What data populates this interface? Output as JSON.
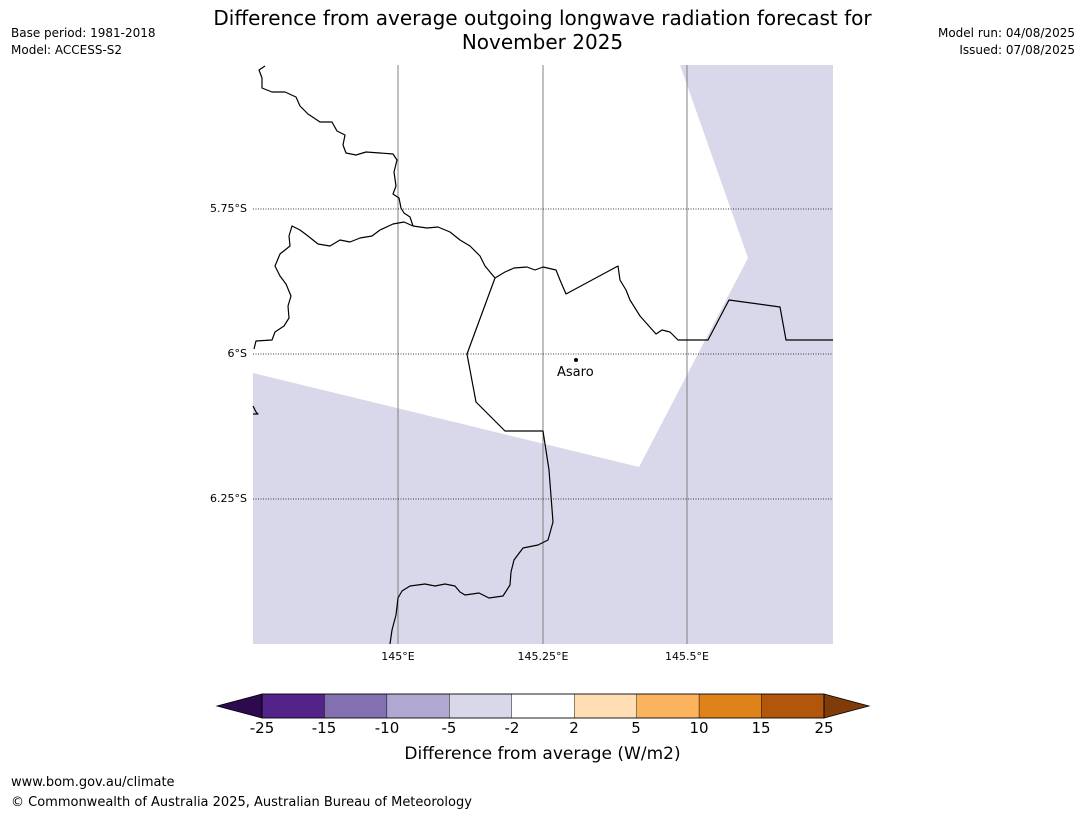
{
  "header": {
    "title_line1": "Difference from average outgoing longwave radiation forecast for",
    "title_line2": "November 2025",
    "base_period": "Base period: 1981-2018",
    "model": "Model: ACCESS-S2",
    "model_run": "Model run: 04/08/2025",
    "issued": "Issued: 07/08/2025"
  },
  "map": {
    "latitude_labels": [
      "5.75°S",
      "6°S",
      "6.25°S"
    ],
    "longitude_labels": [
      "145°E",
      "145.25°E",
      "145.5°E"
    ],
    "place": {
      "name": "Asaro",
      "lon": 145.28,
      "lat": -6.01
    },
    "shaded_category": "-5 to -2",
    "unshaded_category": "-2 to 2"
  },
  "colorbar": {
    "ticks": [
      "-25",
      "-15",
      "-10",
      "-5",
      "-2",
      "2",
      "5",
      "10",
      "15",
      "25"
    ],
    "colors": [
      "#2d0a4e",
      "#54238a",
      "#8270b0",
      "#b1a8d1",
      "#d8d8ea",
      "#ffffff",
      "#fedeb2",
      "#fbb35e",
      "#e0821a",
      "#b1560a",
      "#7f3b08"
    ],
    "title": "Difference from average (W/m2)"
  },
  "footer": {
    "url": "www.bom.gov.au/climate",
    "copyright": "© Commonwealth of Australia 2025, Australian Bureau of Meteorology"
  }
}
